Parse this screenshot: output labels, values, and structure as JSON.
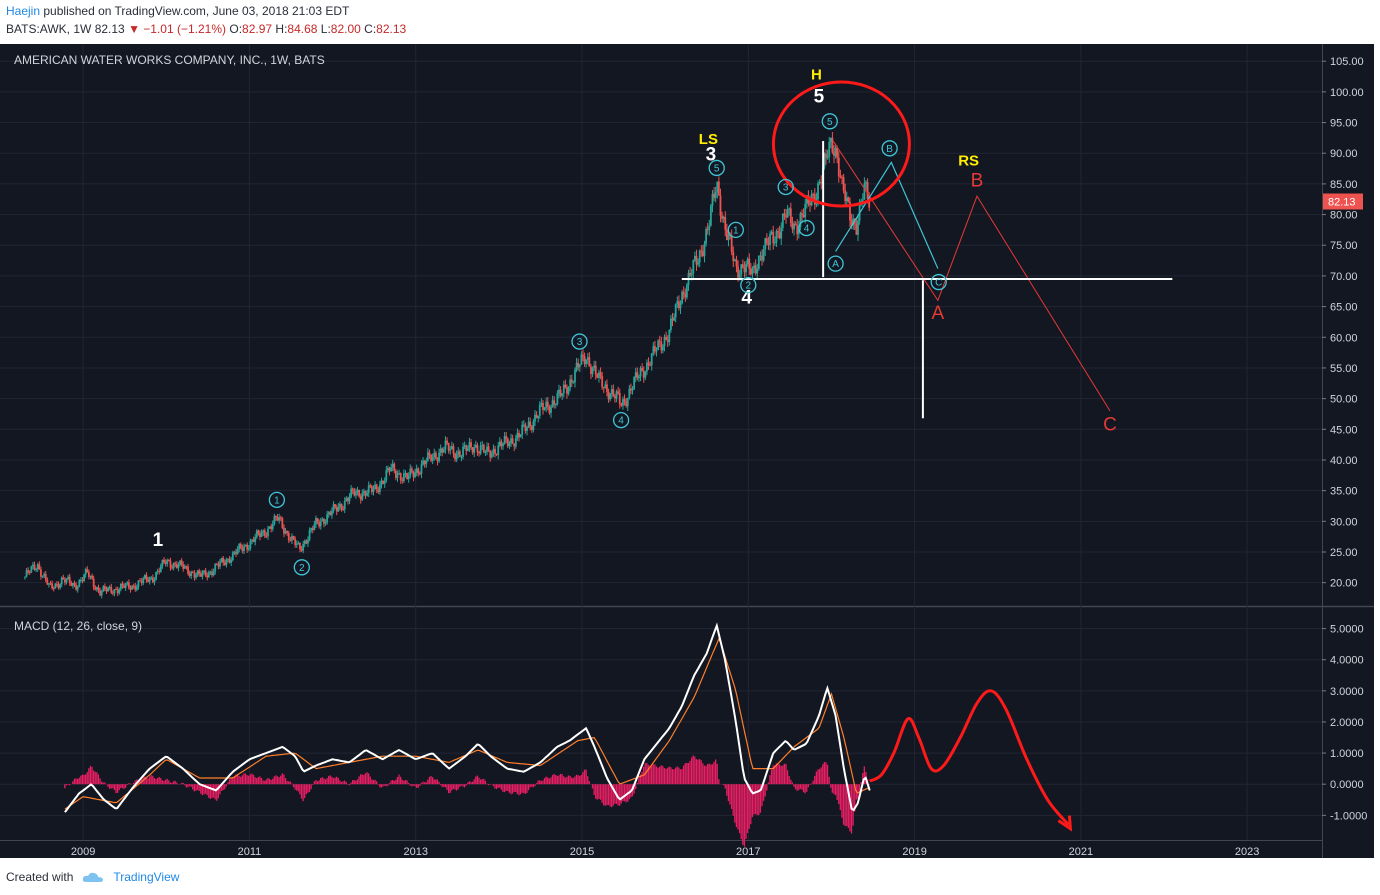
{
  "header": {
    "author": "Haejin",
    "published": "published on TradingView.com, June 03, 2018 21:03 EDT",
    "symbol": "BATS:AWK, 1W",
    "last": "82.13",
    "change": "−1.01 (−1.21%)",
    "o_label": "O:",
    "o": "82.97",
    "h_label": "H:",
    "h": "84.68",
    "l_label": "L:",
    "l": "82.00",
    "c_label": "C:",
    "c": "82.13"
  },
  "footer": {
    "created_with": "Created with",
    "brand": "TradingView"
  },
  "colors": {
    "background": "#131722",
    "up": "#26a69a",
    "down": "#ef5350",
    "macd": "#ffffff",
    "signal": "#ff7f2a",
    "hist": "#e91e63",
    "annot_red": "#e53935",
    "annot_cyan": "#3fc5d6",
    "annot_yellow": "#ffee00"
  },
  "chart_data": [
    {
      "type": "candlestick",
      "title": "AMERICAN WATER WORKS COMPANY, INC., 1W, BATS",
      "xlim": [
        2008.0,
        2023.9
      ],
      "ylim": [
        17.5,
        106.5
      ],
      "x_ticks": [
        "2009",
        "2011",
        "2013",
        "2015",
        "2017",
        "2019",
        "2021",
        "2023"
      ],
      "y_ticks": [
        "20.00",
        "25.00",
        "30.00",
        "35.00",
        "40.00",
        "45.00",
        "50.00",
        "55.00",
        "60.00",
        "65.00",
        "70.00",
        "75.00",
        "80.00",
        "85.00",
        "90.00",
        "95.00",
        "100.00",
        "105.00"
      ],
      "last_price_label": "82.13",
      "price_path": [
        [
          2008.3,
          21.0
        ],
        [
          2008.45,
          23.0
        ],
        [
          2008.6,
          19.0
        ],
        [
          2008.75,
          20.5
        ],
        [
          2008.9,
          19.5
        ],
        [
          2009.05,
          21.5
        ],
        [
          2009.2,
          18.5
        ],
        [
          2009.4,
          19.0
        ],
        [
          2009.6,
          19.5
        ],
        [
          2009.85,
          21.0
        ],
        [
          2010.0,
          23.5
        ],
        [
          2010.2,
          22.5
        ],
        [
          2010.4,
          21.0
        ],
        [
          2010.55,
          22.0
        ],
        [
          2010.75,
          24.0
        ],
        [
          2011.0,
          26.5
        ],
        [
          2011.2,
          28.5
        ],
        [
          2011.35,
          30.5
        ],
        [
          2011.5,
          27.0
        ],
        [
          2011.6,
          25.5
        ],
        [
          2011.8,
          29.5
        ],
        [
          2012.0,
          31.5
        ],
        [
          2012.25,
          34.5
        ],
        [
          2012.5,
          35.0
        ],
        [
          2012.7,
          38.5
        ],
        [
          2012.9,
          37.0
        ],
        [
          2013.1,
          39.5
        ],
        [
          2013.35,
          42.0
        ],
        [
          2013.55,
          41.0
        ],
        [
          2013.7,
          42.5
        ],
        [
          2013.85,
          41.0
        ],
        [
          2014.05,
          42.5
        ],
        [
          2014.25,
          44.0
        ],
        [
          2014.5,
          48.0
        ],
        [
          2014.75,
          50.5
        ],
        [
          2014.95,
          55.0
        ],
        [
          2015.05,
          57.0
        ],
        [
          2015.2,
          53.0
        ],
        [
          2015.35,
          51.0
        ],
        [
          2015.48,
          49.0
        ],
        [
          2015.6,
          52.0
        ],
        [
          2015.75,
          55.0
        ],
        [
          2015.9,
          58.0
        ],
        [
          2016.05,
          61.0
        ],
        [
          2016.2,
          67.0
        ],
        [
          2016.4,
          73.0
        ],
        [
          2016.52,
          78.0
        ],
        [
          2016.62,
          85.0
        ],
        [
          2016.72,
          78.0
        ],
        [
          2016.85,
          71.0
        ],
        [
          2016.95,
          72.0
        ],
        [
          2017.05,
          70.0
        ],
        [
          2017.15,
          74.0
        ],
        [
          2017.3,
          76.0
        ],
        [
          2017.45,
          80.0
        ],
        [
          2017.55,
          78.0
        ],
        [
          2017.7,
          81.0
        ],
        [
          2017.82,
          84.0
        ],
        [
          2017.92,
          88.0
        ],
        [
          2018.0,
          92.0
        ],
        [
          2018.06,
          90.5
        ],
        [
          2018.13,
          84.0
        ],
        [
          2018.22,
          80.0
        ],
        [
          2018.3,
          78.5
        ],
        [
          2018.4,
          84.0
        ],
        [
          2018.46,
          82.1
        ]
      ],
      "labels": [
        {
          "text": "1",
          "x": 2009.9,
          "y": 26.0,
          "style": "white"
        },
        {
          "text": "3",
          "x": 2016.55,
          "y": 88.8,
          "style": "white"
        },
        {
          "text": "4",
          "x": 2016.98,
          "y": 65.5,
          "style": "white"
        },
        {
          "text": "5",
          "x": 2017.85,
          "y": 98.3,
          "style": "white"
        },
        {
          "text": "LS",
          "x": 2016.52,
          "y": 91.5,
          "style": "yellow"
        },
        {
          "text": "H",
          "x": 2017.82,
          "y": 102.0,
          "style": "yellow"
        },
        {
          "text": "RS",
          "x": 2019.65,
          "y": 88.0,
          "style": "yellow"
        },
        {
          "text": "A",
          "x": 2019.28,
          "y": 63.0,
          "style": "red"
        },
        {
          "text": "B",
          "x": 2019.75,
          "y": 84.6,
          "style": "red"
        },
        {
          "text": "C",
          "x": 2021.35,
          "y": 44.8,
          "style": "red"
        }
      ],
      "circled": [
        {
          "text": "1",
          "x": 2011.33,
          "y": 33.5
        },
        {
          "text": "2",
          "x": 2011.63,
          "y": 22.5
        },
        {
          "text": "3",
          "x": 2014.97,
          "y": 59.3
        },
        {
          "text": "4",
          "x": 2015.47,
          "y": 46.5
        },
        {
          "text": "5",
          "x": 2016.62,
          "y": 87.6
        },
        {
          "text": "1",
          "x": 2016.85,
          "y": 77.5
        },
        {
          "text": "2",
          "x": 2017.0,
          "y": 68.5
        },
        {
          "text": "3",
          "x": 2017.45,
          "y": 84.5
        },
        {
          "text": "4",
          "x": 2017.7,
          "y": 77.8
        },
        {
          "text": "5",
          "x": 2017.98,
          "y": 95.2
        },
        {
          "text": "A",
          "x": 2018.05,
          "y": 72.0
        },
        {
          "text": "B",
          "x": 2018.7,
          "y": 90.8
        },
        {
          "text": "C",
          "x": 2019.29,
          "y": 69.0
        }
      ],
      "red_path": [
        [
          2018.02,
          92.0
        ],
        [
          2019.28,
          66.0
        ],
        [
          2019.75,
          83.0
        ],
        [
          2021.35,
          48.0
        ]
      ],
      "cyan_path": [
        [
          2018.05,
          74.0
        ],
        [
          2018.72,
          88.5
        ],
        [
          2019.28,
          71.2
        ]
      ],
      "neckline": {
        "x": [
          2016.2,
          2022.1
        ],
        "y": 69.5
      },
      "white_verticals": [
        {
          "x": 2017.9,
          "y": [
            69.8,
            92.0
          ]
        },
        {
          "x": 2019.1,
          "y": [
            46.8,
            69.3
          ]
        }
      ],
      "head_circle": {
        "x": 2018.12,
        "y": 91.5
      }
    },
    {
      "type": "line",
      "title": "MACD (12, 26, close, 9)",
      "ylim": [
        -1.6,
        5.5
      ],
      "y_ticks": [
        "5.0000",
        "4.0000",
        "3.0000",
        "2.0000",
        "1.0000",
        "0.0000",
        "-1.0000"
      ],
      "macd": [
        [
          2008.78,
          -0.9
        ],
        [
          2008.95,
          -0.3
        ],
        [
          2009.1,
          0.0
        ],
        [
          2009.25,
          -0.5
        ],
        [
          2009.4,
          -0.8
        ],
        [
          2009.6,
          -0.1
        ],
        [
          2009.8,
          0.5
        ],
        [
          2010.0,
          0.9
        ],
        [
          2010.2,
          0.5
        ],
        [
          2010.4,
          0.0
        ],
        [
          2010.6,
          -0.2
        ],
        [
          2010.8,
          0.4
        ],
        [
          2011.0,
          0.8
        ],
        [
          2011.2,
          1.0
        ],
        [
          2011.4,
          1.2
        ],
        [
          2011.55,
          0.9
        ],
        [
          2011.65,
          0.4
        ],
        [
          2011.8,
          0.6
        ],
        [
          2012.0,
          0.8
        ],
        [
          2012.2,
          0.7
        ],
        [
          2012.4,
          1.1
        ],
        [
          2012.6,
          0.8
        ],
        [
          2012.8,
          1.1
        ],
        [
          2013.0,
          0.8
        ],
        [
          2013.2,
          1.0
        ],
        [
          2013.4,
          0.5
        ],
        [
          2013.6,
          0.9
        ],
        [
          2013.75,
          1.3
        ],
        [
          2013.9,
          0.9
        ],
        [
          2014.1,
          0.5
        ],
        [
          2014.3,
          0.4
        ],
        [
          2014.5,
          0.7
        ],
        [
          2014.7,
          1.2
        ],
        [
          2014.85,
          1.4
        ],
        [
          2014.95,
          1.6
        ],
        [
          2015.05,
          1.8
        ],
        [
          2015.15,
          1.2
        ],
        [
          2015.3,
          0.2
        ],
        [
          2015.45,
          -0.5
        ],
        [
          2015.6,
          -0.2
        ],
        [
          2015.75,
          0.8
        ],
        [
          2015.9,
          1.3
        ],
        [
          2016.05,
          1.8
        ],
        [
          2016.2,
          2.5
        ],
        [
          2016.35,
          3.5
        ],
        [
          2016.5,
          4.2
        ],
        [
          2016.62,
          5.1
        ],
        [
          2016.72,
          4.0
        ],
        [
          2016.85,
          2.0
        ],
        [
          2016.95,
          0.2
        ],
        [
          2017.05,
          -0.3
        ],
        [
          2017.15,
          -0.2
        ],
        [
          2017.3,
          1.0
        ],
        [
          2017.45,
          1.4
        ],
        [
          2017.55,
          1.1
        ],
        [
          2017.7,
          1.3
        ],
        [
          2017.85,
          2.2
        ],
        [
          2017.95,
          3.1
        ],
        [
          2018.05,
          2.2
        ],
        [
          2018.15,
          0.5
        ],
        [
          2018.25,
          -0.9
        ],
        [
          2018.32,
          -0.6
        ],
        [
          2018.4,
          0.3
        ],
        [
          2018.46,
          -0.2
        ]
      ],
      "signal": [
        [
          2008.78,
          -0.8
        ],
        [
          2009.0,
          -0.4
        ],
        [
          2009.4,
          -0.6
        ],
        [
          2009.8,
          0.3
        ],
        [
          2010.0,
          0.8
        ],
        [
          2010.4,
          0.2
        ],
        [
          2010.8,
          0.2
        ],
        [
          2011.2,
          0.9
        ],
        [
          2011.55,
          1.0
        ],
        [
          2011.8,
          0.5
        ],
        [
          2012.2,
          0.7
        ],
        [
          2012.6,
          0.9
        ],
        [
          2013.0,
          0.9
        ],
        [
          2013.4,
          0.7
        ],
        [
          2013.75,
          1.1
        ],
        [
          2014.1,
          0.7
        ],
        [
          2014.5,
          0.6
        ],
        [
          2014.95,
          1.4
        ],
        [
          2015.15,
          1.5
        ],
        [
          2015.45,
          0.0
        ],
        [
          2015.75,
          0.3
        ],
        [
          2016.05,
          1.4
        ],
        [
          2016.35,
          2.8
        ],
        [
          2016.65,
          4.7
        ],
        [
          2016.85,
          3.0
        ],
        [
          2017.05,
          0.5
        ],
        [
          2017.3,
          0.5
        ],
        [
          2017.55,
          1.2
        ],
        [
          2017.85,
          1.8
        ],
        [
          2018.0,
          2.9
        ],
        [
          2018.15,
          1.5
        ],
        [
          2018.3,
          -0.3
        ],
        [
          2018.46,
          -0.1
        ]
      ],
      "projection": [
        [
          2018.46,
          0.1
        ],
        [
          2018.6,
          0.3
        ],
        [
          2018.75,
          1.0
        ],
        [
          2018.92,
          2.1
        ],
        [
          2019.05,
          1.5
        ],
        [
          2019.2,
          0.5
        ],
        [
          2019.35,
          0.6
        ],
        [
          2019.55,
          1.5
        ],
        [
          2019.75,
          2.6
        ],
        [
          2019.92,
          3.0
        ],
        [
          2020.1,
          2.4
        ],
        [
          2020.35,
          0.8
        ],
        [
          2020.6,
          -0.5
        ],
        [
          2020.85,
          -1.3
        ]
      ]
    }
  ]
}
